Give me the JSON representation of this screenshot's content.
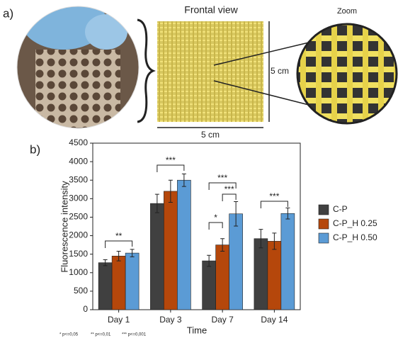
{
  "panel_a": {
    "label": "a)",
    "view_title": "Frontal view",
    "width_label": "5 cm",
    "height_label": "5 cm",
    "zoom_title": "Zoom"
  },
  "chart_data": {
    "type": "bar",
    "panel_label": "b)",
    "x_label": "Time",
    "y_label": "Fluorescence intensity",
    "categories": [
      "Day 1",
      "Day 3",
      "Day 7",
      "Day 14"
    ],
    "series": [
      {
        "name": "C-P",
        "color": "#404040",
        "values": [
          1270,
          2870,
          1320,
          1920
        ],
        "errors": [
          80,
          250,
          150,
          250
        ]
      },
      {
        "name": "C-P_H 0.25",
        "color": "#b5470b",
        "values": [
          1450,
          3200,
          1750,
          1850
        ],
        "errors": [
          130,
          300,
          170,
          220
        ]
      },
      {
        "name": "C-P_H 0.50",
        "color": "#5b9bd5",
        "values": [
          1530,
          3500,
          2590,
          2600
        ],
        "errors": [
          100,
          170,
          330,
          150
        ]
      }
    ],
    "ylim": [
      0,
      4500
    ],
    "yticks": [
      0,
      500,
      1000,
      1500,
      2000,
      2500,
      3000,
      3500,
      4000,
      4500
    ],
    "annotations": [
      "**",
      "***",
      "***",
      "***",
      "*",
      "***"
    ],
    "footnote": [
      "* p<=0,05",
      "** p<=0,01",
      "*** p<=0,001"
    ]
  }
}
